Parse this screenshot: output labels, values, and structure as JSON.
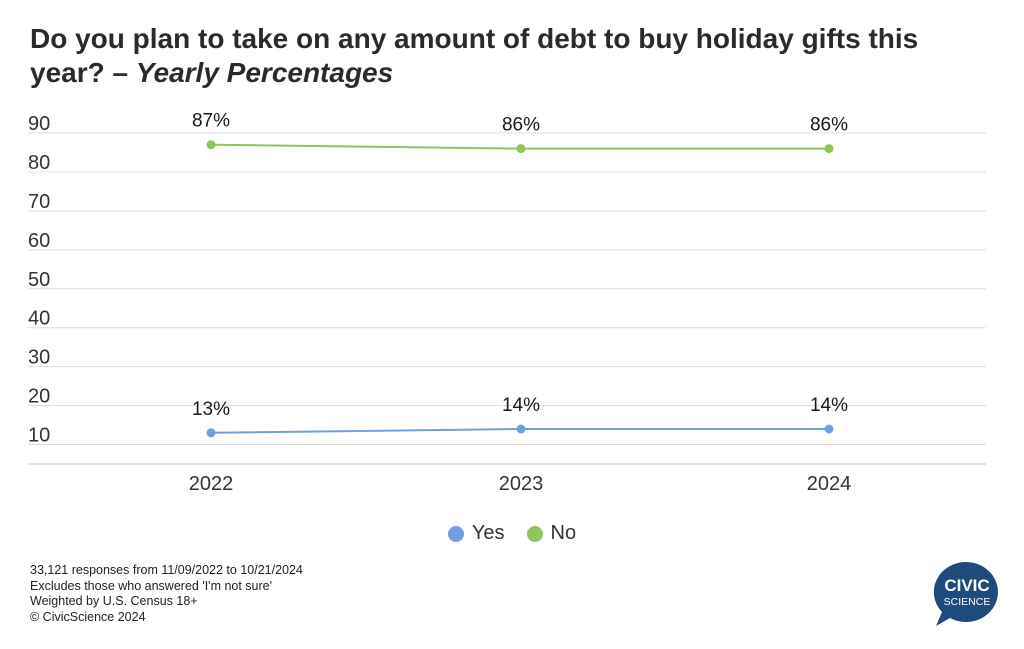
{
  "title": {
    "main": "Do you plan to take on any amount of debt to buy holiday gifts this year? – ",
    "italic": "Yearly Percentages"
  },
  "chart_data": {
    "type": "line",
    "title": "Do you plan to take on any amount of debt to buy holiday gifts this year? – Yearly Percentages",
    "x": [
      "2022",
      "2023",
      "2024"
    ],
    "ylim": [
      5,
      90
    ],
    "yticks": [
      10,
      20,
      30,
      40,
      50,
      60,
      70,
      80,
      90
    ],
    "grid": true,
    "legend_position": "bottom",
    "series": [
      {
        "name": "Yes",
        "color": "#6f9fe0",
        "values": [
          13,
          14,
          14
        ],
        "labels": [
          "13%",
          "14%",
          "14%"
        ]
      },
      {
        "name": "No",
        "color": "#91c45a",
        "values": [
          87,
          86,
          86
        ],
        "labels": [
          "87%",
          "86%",
          "86%"
        ]
      }
    ]
  },
  "legend": [
    {
      "label": "Yes",
      "color": "#6f9fe0"
    },
    {
      "label": "No",
      "color": "#91c45a"
    }
  ],
  "footnotes": [
    "33,121 responses from 11/09/2022 to 10/21/2024",
    "Excludes those who answered 'I'm not sure'",
    "Weighted by U.S. Census 18+",
    "© CivicScience 2024"
  ],
  "logo": {
    "line1": "CIVIC",
    "line2": "SCIENCE",
    "color": "#1f4a7c"
  }
}
